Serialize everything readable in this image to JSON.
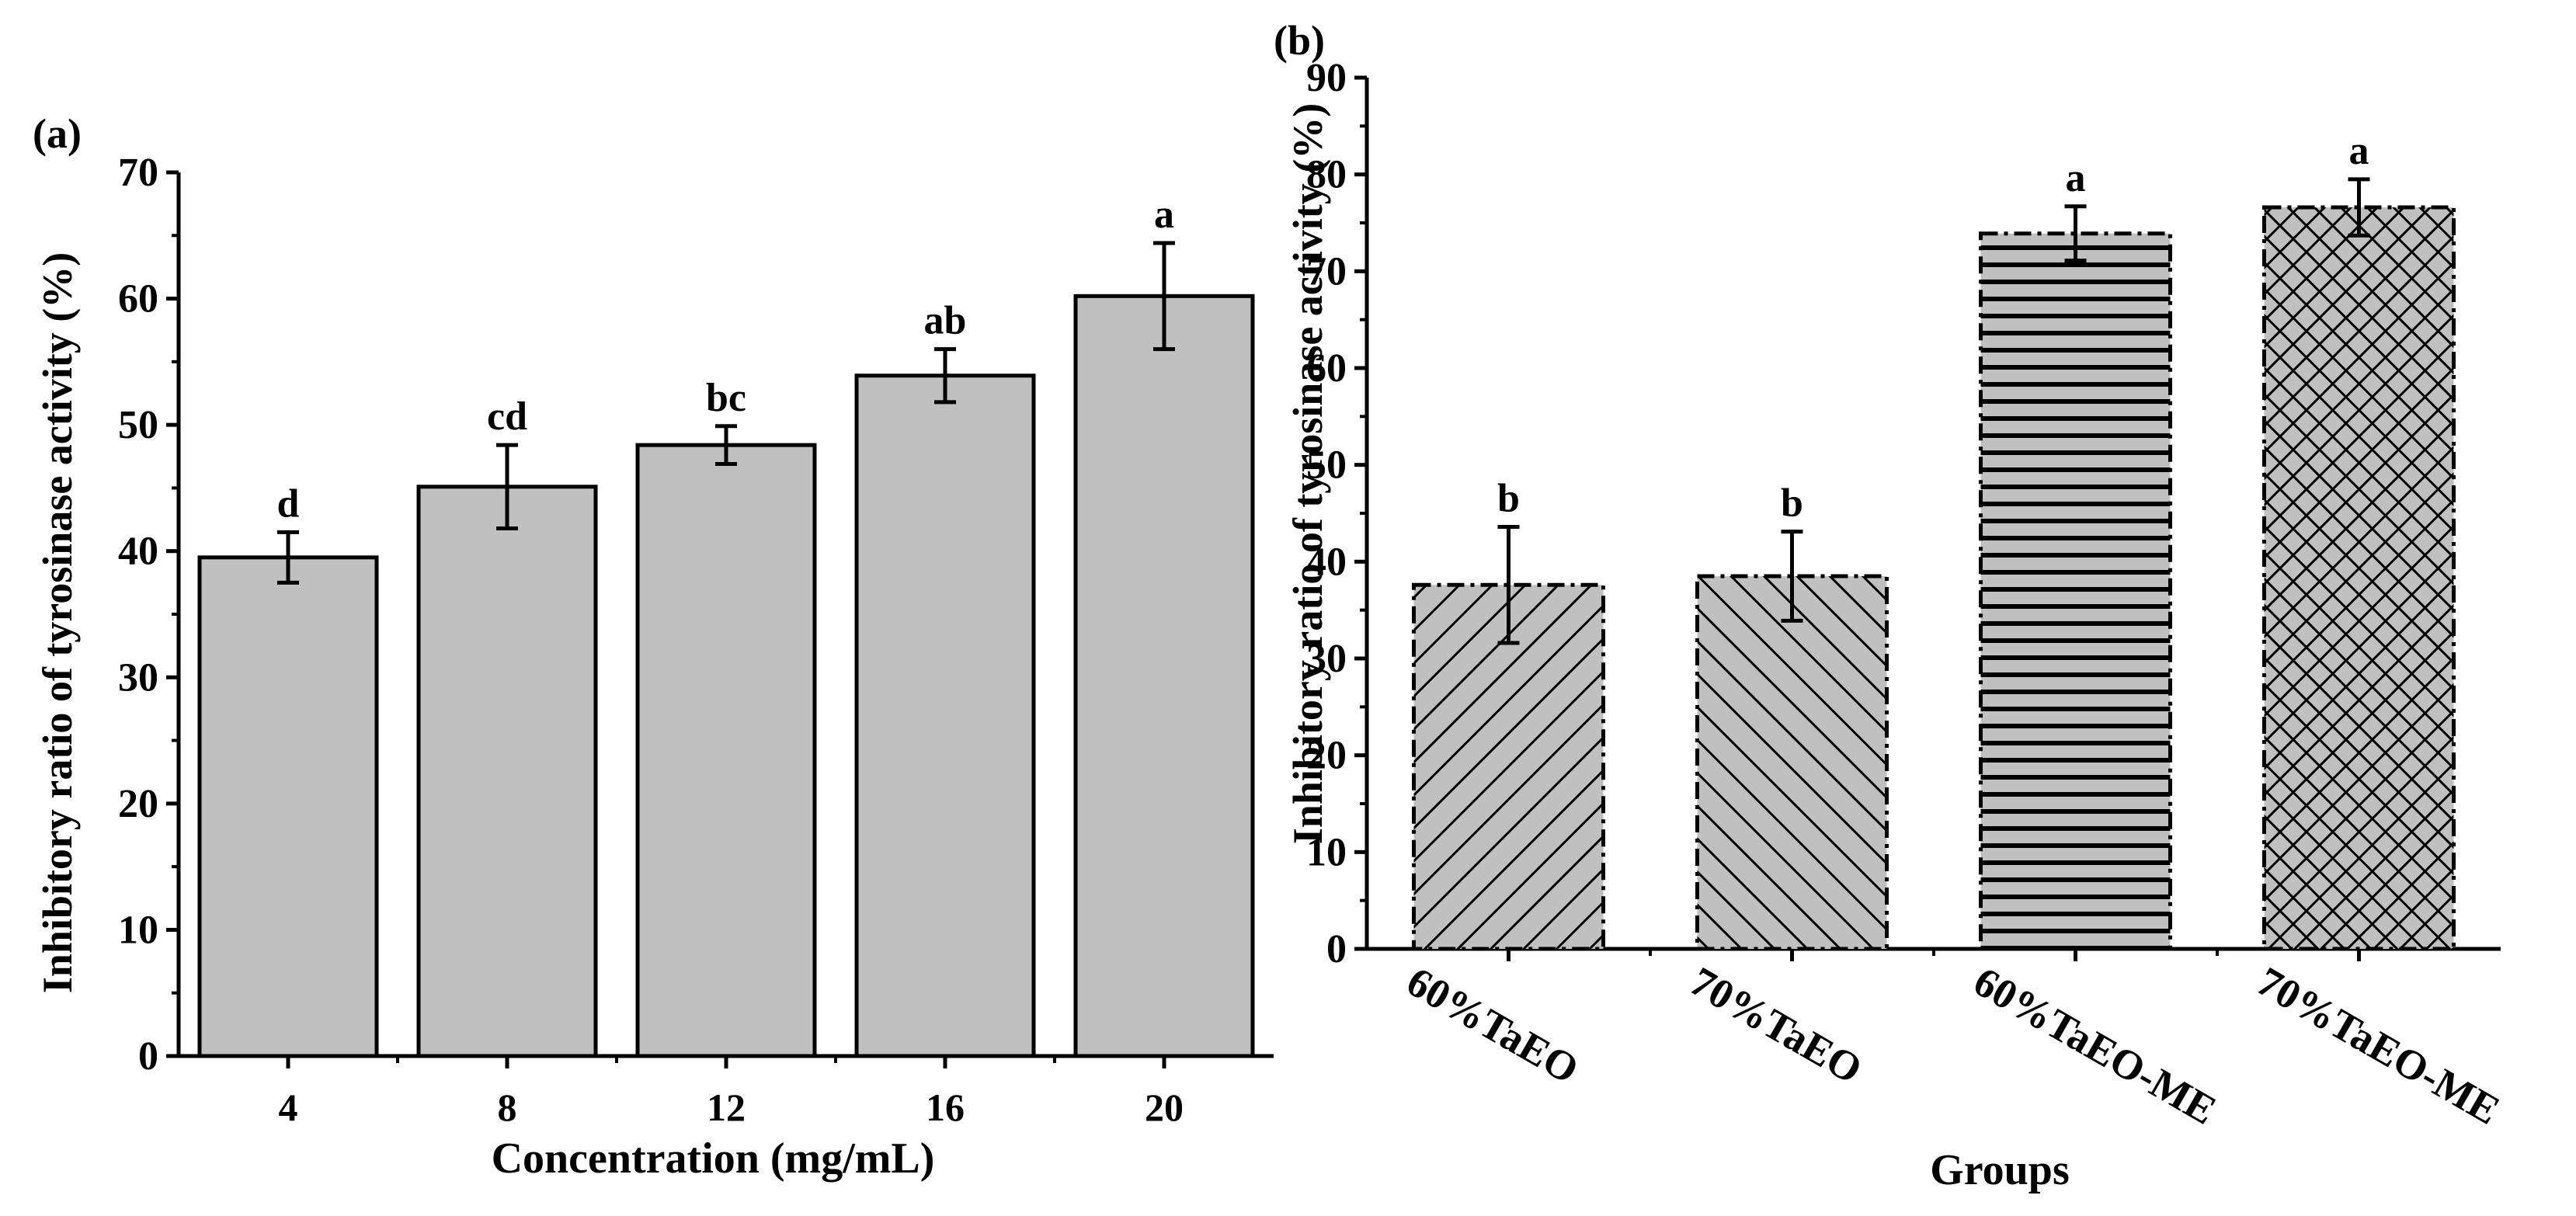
{
  "chart_data": [
    {
      "type": "bar",
      "panel_label": "(a)",
      "categories": [
        "4",
        "8",
        "12",
        "16",
        "20"
      ],
      "values": [
        39.5,
        45.1,
        48.4,
        53.9,
        60.2
      ],
      "errors": [
        2.0,
        3.3,
        1.5,
        2.1,
        4.2
      ],
      "significance_letters": [
        "d",
        "cd",
        "bc",
        "ab",
        "a"
      ],
      "xlabel": "Concentration (mg/mL)",
      "ylabel": "Inhibitory ratio of tyrosinase activity (%)",
      "ylim": [
        0,
        70
      ],
      "yticks": [
        "0",
        "10",
        "20",
        "30",
        "40",
        "50",
        "60",
        "70"
      ],
      "grid": false,
      "bar_color": "#c0c0c0"
    },
    {
      "type": "bar",
      "panel_label": "(b)",
      "categories": [
        "60%TaEO",
        "70%TaEO",
        "60%TaEO-ME",
        "70%TaEO-ME"
      ],
      "values": [
        37.6,
        38.5,
        73.9,
        76.6
      ],
      "errors": [
        6.0,
        4.6,
        2.8,
        2.9
      ],
      "significance_letters": [
        "b",
        "b",
        "a",
        "a"
      ],
      "patterns": [
        "diagonal-right",
        "diagonal-left",
        "horizontal",
        "crosshatch"
      ],
      "xlabel": "Groups",
      "ylabel": "Inhibitory ratio of tyrosinase activity (%)",
      "ylim": [
        0,
        90
      ],
      "yticks": [
        "0",
        "10",
        "20",
        "30",
        "40",
        "50",
        "60",
        "70",
        "80",
        "90"
      ],
      "grid": false,
      "bar_color": "#c0c0c0"
    }
  ]
}
